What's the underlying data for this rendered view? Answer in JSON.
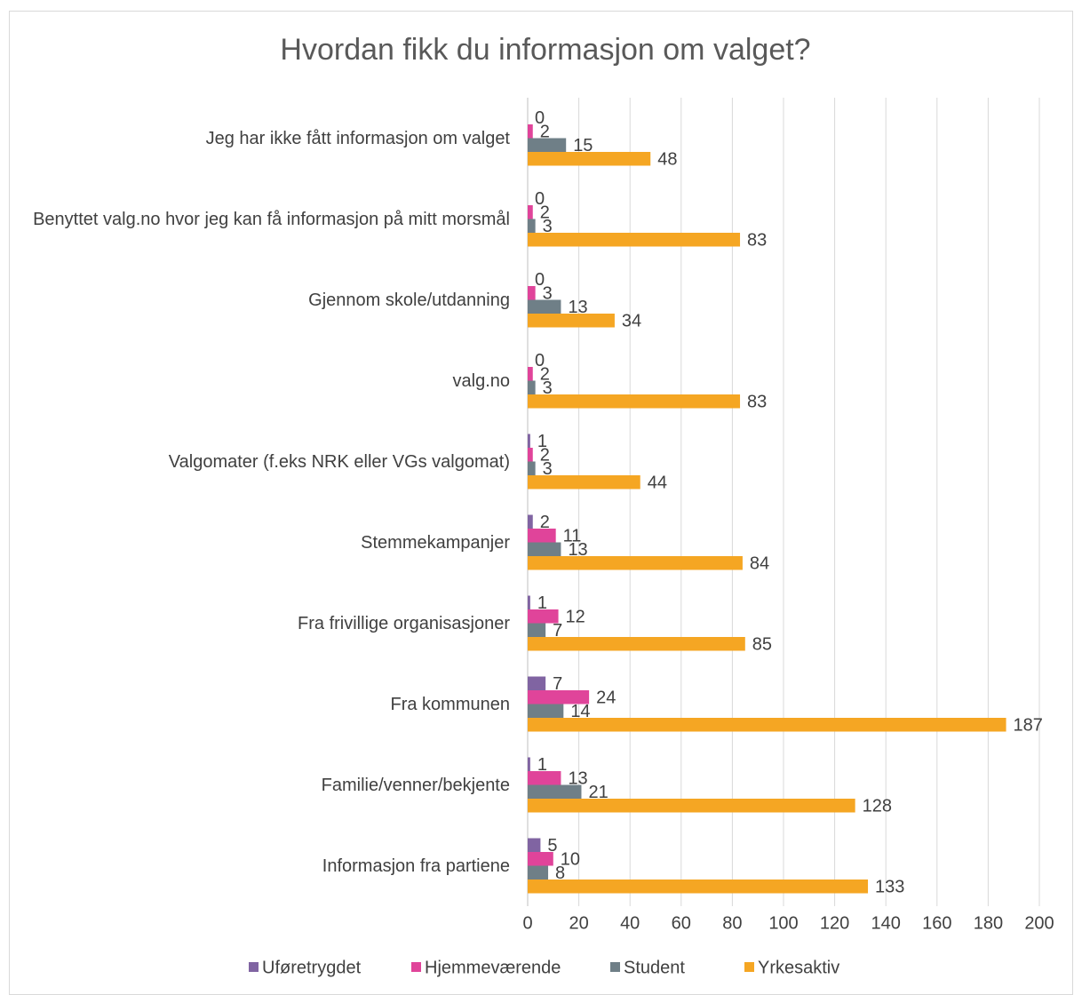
{
  "chart_data": {
    "type": "hbar",
    "title": "Hvordan fikk du informasjon om valget?",
    "categories": [
      "Jeg har ikke fått informasjon om valget",
      "Benyttet valg.no hvor jeg kan få informasjon på mitt morsmål",
      "Gjennom skole/utdanning",
      "valg.no",
      "Valgomater (f.eks NRK eller VGs valgomat)",
      "Stemmekampanjer",
      "Fra frivillige organisasjoner",
      "Fra kommunen",
      "Familie/venner/bekjente",
      "Informasjon fra partiene"
    ],
    "series": [
      {
        "name": "Uføretrygdet",
        "color": "#8064a2",
        "values": [
          0,
          0,
          0,
          0,
          1,
          2,
          1,
          7,
          1,
          5
        ]
      },
      {
        "name": "Hjemmeværende",
        "color": "#e0449a",
        "values": [
          2,
          2,
          3,
          2,
          2,
          11,
          12,
          24,
          13,
          10
        ]
      },
      {
        "name": "Student",
        "color": "#6f7f87",
        "values": [
          15,
          3,
          13,
          3,
          3,
          13,
          7,
          14,
          21,
          8
        ]
      },
      {
        "name": "Yrkesaktiv",
        "color": "#f5a623",
        "values": [
          48,
          83,
          34,
          83,
          44,
          84,
          85,
          187,
          128,
          133
        ]
      }
    ],
    "xlim": [
      0,
      200
    ],
    "xticks": [
      0,
      20,
      40,
      60,
      80,
      100,
      120,
      140,
      160,
      180,
      200
    ],
    "grid": true,
    "legend": "bottom"
  }
}
